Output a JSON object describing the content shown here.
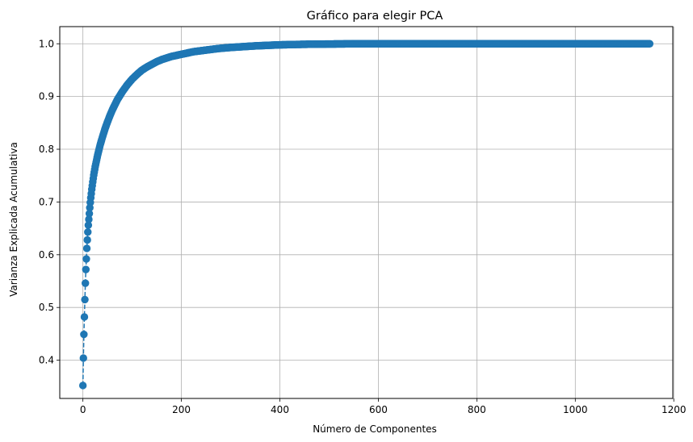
{
  "chart_data": {
    "type": "scatter",
    "title": "Gráfico para elegir PCA",
    "xlabel": "Número de Componentes",
    "ylabel": "Varianza Explicada Acumulativa",
    "xlim": [
      -47,
      1198
    ],
    "ylim": [
      0.3275,
      1.0325
    ],
    "x_ticks": [
      0,
      200,
      400,
      600,
      800,
      1000,
      1200
    ],
    "y_ticks": [
      0.4,
      0.5,
      0.6,
      0.7,
      0.8,
      0.9,
      1.0
    ],
    "x_tick_labels": [
      "0",
      "200",
      "400",
      "600",
      "800",
      "1000",
      "1200"
    ],
    "y_tick_labels": [
      "0.4",
      "0.5",
      "0.6",
      "0.7",
      "0.8",
      "0.9",
      "1.0"
    ],
    "grid": true,
    "marker": "circle",
    "linestyle": "dashed",
    "color": "#1f77b4",
    "n_points": 1152,
    "points": [
      [
        0,
        0.352
      ],
      [
        1,
        0.404
      ],
      [
        2,
        0.449
      ],
      [
        3,
        0.482
      ],
      [
        4,
        0.515
      ],
      [
        5,
        0.546
      ],
      [
        6,
        0.572
      ],
      [
        7,
        0.592
      ],
      [
        8,
        0.612
      ],
      [
        9,
        0.628
      ],
      [
        10,
        0.643
      ],
      [
        11,
        0.656
      ],
      [
        12,
        0.667
      ],
      [
        13,
        0.678
      ],
      [
        14,
        0.689
      ],
      [
        15,
        0.699
      ],
      [
        16,
        0.708
      ],
      [
        17,
        0.716
      ],
      [
        18,
        0.724
      ],
      [
        19,
        0.731
      ],
      [
        20,
        0.738
      ],
      [
        22,
        0.751
      ],
      [
        25,
        0.767
      ],
      [
        30,
        0.789
      ],
      [
        35,
        0.808
      ],
      [
        40,
        0.824
      ],
      [
        45,
        0.839
      ],
      [
        50,
        0.852
      ],
      [
        55,
        0.864
      ],
      [
        60,
        0.875
      ],
      [
        70,
        0.894
      ],
      [
        80,
        0.909
      ],
      [
        90,
        0.922
      ],
      [
        100,
        0.933
      ],
      [
        110,
        0.942
      ],
      [
        120,
        0.95
      ],
      [
        130,
        0.956
      ],
      [
        140,
        0.961
      ],
      [
        150,
        0.966
      ],
      [
        160,
        0.97
      ],
      [
        170,
        0.973
      ],
      [
        180,
        0.976
      ],
      [
        190,
        0.978
      ],
      [
        200,
        0.98
      ],
      [
        225,
        0.985
      ],
      [
        250,
        0.988
      ],
      [
        275,
        0.991
      ],
      [
        300,
        0.993
      ],
      [
        350,
        0.996
      ],
      [
        400,
        0.998
      ],
      [
        450,
        0.999
      ],
      [
        500,
        0.9995
      ],
      [
        550,
        1.0
      ],
      [
        600,
        1.0
      ],
      [
        700,
        1.0
      ],
      [
        800,
        1.0
      ],
      [
        900,
        1.0
      ],
      [
        1000,
        1.0
      ],
      [
        1100,
        1.0
      ],
      [
        1151,
        1.0
      ]
    ]
  }
}
